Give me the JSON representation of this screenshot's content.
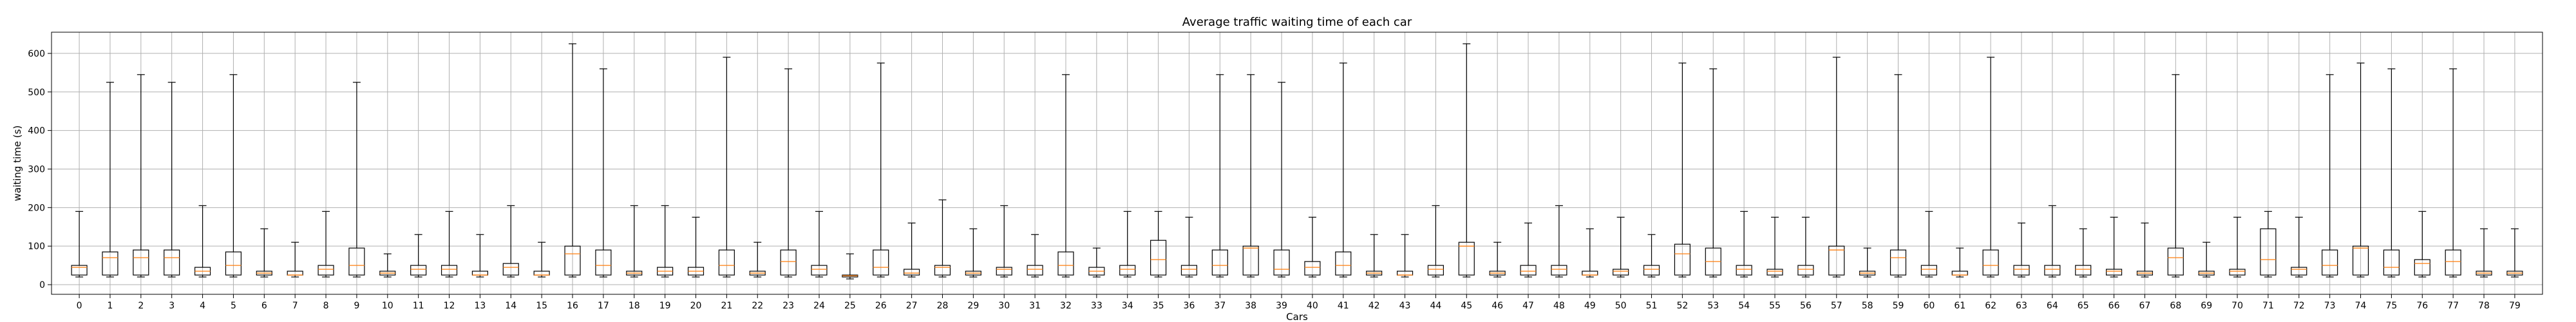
{
  "chart_data": {
    "type": "boxplot",
    "title": "Average traffic waiting time of each car",
    "xlabel": "Cars",
    "ylabel": "waiting time (s)",
    "grid": true,
    "ylim": [
      -25,
      655
    ],
    "yticks": [
      0,
      100,
      200,
      300,
      400,
      500,
      600
    ],
    "colors": {
      "box": "#000000",
      "median": "#ff7f0e",
      "grid": "#b0b0b0"
    },
    "categories": [
      "0",
      "1",
      "2",
      "3",
      "4",
      "5",
      "6",
      "7",
      "8",
      "9",
      "10",
      "11",
      "12",
      "13",
      "14",
      "15",
      "16",
      "17",
      "18",
      "19",
      "20",
      "21",
      "22",
      "23",
      "24",
      "25",
      "26",
      "27",
      "28",
      "29",
      "30",
      "31",
      "32",
      "33",
      "34",
      "35",
      "36",
      "37",
      "38",
      "39",
      "40",
      "41",
      "42",
      "43",
      "44",
      "45",
      "46",
      "47",
      "48",
      "49",
      "50",
      "51",
      "52",
      "53",
      "54",
      "55",
      "56",
      "57",
      "58",
      "59",
      "60",
      "61",
      "62",
      "63",
      "64",
      "65",
      "66",
      "67",
      "68",
      "69",
      "70",
      "71",
      "72",
      "73",
      "74",
      "75",
      "76",
      "77",
      "78",
      "79"
    ],
    "whisker_low": [
      20,
      20,
      20,
      20,
      20,
      20,
      20,
      20,
      20,
      20,
      20,
      20,
      20,
      20,
      20,
      20,
      20,
      20,
      20,
      20,
      20,
      20,
      20,
      20,
      20,
      15,
      20,
      20,
      20,
      20,
      20,
      20,
      20,
      20,
      20,
      20,
      20,
      20,
      20,
      20,
      20,
      20,
      20,
      20,
      20,
      20,
      20,
      20,
      20,
      20,
      20,
      20,
      20,
      20,
      20,
      20,
      20,
      20,
      20,
      20,
      20,
      20,
      20,
      20,
      20,
      20,
      20,
      20,
      20,
      20,
      20,
      20,
      20,
      20,
      20,
      20,
      20,
      20,
      20,
      20
    ],
    "q1": [
      25,
      25,
      25,
      25,
      25,
      25,
      25,
      25,
      25,
      25,
      25,
      25,
      25,
      25,
      25,
      25,
      25,
      25,
      25,
      25,
      25,
      25,
      25,
      25,
      25,
      20,
      25,
      25,
      25,
      25,
      25,
      25,
      25,
      25,
      25,
      25,
      25,
      25,
      25,
      25,
      25,
      25,
      25,
      25,
      25,
      25,
      25,
      25,
      25,
      25,
      25,
      25,
      25,
      25,
      25,
      25,
      25,
      25,
      25,
      25,
      25,
      25,
      25,
      25,
      25,
      25,
      25,
      25,
      25,
      25,
      25,
      25,
      25,
      25,
      25,
      25,
      25,
      25,
      25,
      25
    ],
    "median": [
      45,
      70,
      70,
      70,
      35,
      50,
      30,
      25,
      40,
      50,
      30,
      40,
      40,
      25,
      45,
      25,
      80,
      50,
      30,
      35,
      35,
      50,
      30,
      60,
      40,
      23,
      45,
      30,
      45,
      30,
      40,
      40,
      50,
      35,
      40,
      65,
      40,
      50,
      95,
      40,
      45,
      50,
      30,
      25,
      40,
      100,
      30,
      35,
      40,
      25,
      35,
      40,
      80,
      60,
      40,
      35,
      40,
      90,
      30,
      70,
      40,
      25,
      50,
      40,
      40,
      40,
      35,
      30,
      70,
      30,
      35,
      65,
      40,
      50,
      95,
      45,
      55,
      60,
      30,
      30
    ],
    "q3": [
      50,
      85,
      90,
      90,
      45,
      85,
      35,
      35,
      50,
      95,
      35,
      50,
      50,
      35,
      55,
      35,
      100,
      90,
      35,
      45,
      45,
      90,
      35,
      90,
      50,
      25,
      90,
      40,
      50,
      35,
      45,
      50,
      85,
      45,
      50,
      115,
      50,
      90,
      100,
      90,
      60,
      85,
      35,
      35,
      50,
      110,
      35,
      50,
      50,
      35,
      40,
      50,
      105,
      95,
      50,
      40,
      50,
      100,
      35,
      90,
      50,
      35,
      90,
      50,
      50,
      50,
      40,
      35,
      95,
      35,
      40,
      145,
      45,
      90,
      100,
      90,
      65,
      90,
      35,
      35
    ],
    "whisker_high": [
      190,
      525,
      545,
      525,
      205,
      545,
      145,
      110,
      190,
      525,
      80,
      130,
      190,
      130,
      205,
      110,
      625,
      560,
      205,
      205,
      175,
      590,
      110,
      560,
      190,
      80,
      575,
      160,
      220,
      145,
      205,
      130,
      545,
      95,
      190,
      190,
      175,
      545,
      545,
      525,
      175,
      575,
      130,
      130,
      205,
      625,
      110,
      160,
      205,
      145,
      175,
      130,
      575,
      560,
      190,
      175,
      175,
      590,
      95,
      545,
      190,
      95,
      590,
      160,
      205,
      145,
      175,
      160,
      545,
      110,
      175,
      190,
      175,
      545,
      575,
      560,
      190,
      560,
      145,
      145
    ]
  }
}
